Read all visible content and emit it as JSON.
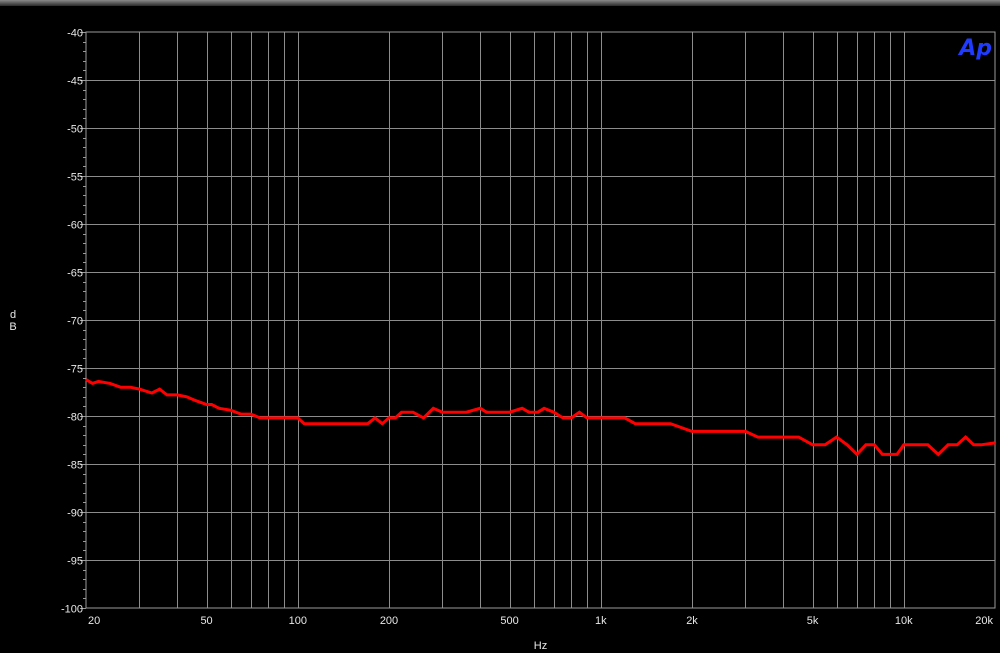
{
  "chart_data": {
    "type": "line",
    "title": "",
    "xlabel": "Hz",
    "ylabel": "dB",
    "x_scale": "log",
    "xlim": [
      20,
      20000
    ],
    "ylim": [
      -100,
      -40
    ],
    "grid": true,
    "y_ticks": [
      -40,
      -45,
      -50,
      -55,
      -60,
      -65,
      -70,
      -75,
      -80,
      -85,
      -90,
      -95,
      -100
    ],
    "y_tick_labels": [
      "-40",
      "-45",
      "-50",
      "-55",
      "-60",
      "-65",
      "-70",
      "-75",
      "-80",
      "-85",
      "-90",
      "-95",
      "-100"
    ],
    "x_ticks": [
      20,
      50,
      100,
      200,
      500,
      1000,
      2000,
      5000,
      10000,
      20000
    ],
    "x_tick_labels": [
      "20",
      "50",
      "100",
      "200",
      "500",
      "1k",
      "2k",
      "5k",
      "10k",
      "20k"
    ],
    "series": [
      {
        "color": "#ff0000",
        "x": [
          20,
          21,
          22,
          24,
          26,
          28,
          30,
          33,
          35,
          37,
          40,
          43,
          46,
          50,
          52,
          55,
          60,
          65,
          70,
          75,
          80,
          90,
          100,
          105,
          120,
          150,
          170,
          180,
          190,
          200,
          210,
          220,
          240,
          260,
          280,
          300,
          330,
          360,
          400,
          420,
          450,
          500,
          550,
          580,
          620,
          650,
          700,
          750,
          800,
          850,
          900,
          1000,
          1100,
          1200,
          1300,
          1500,
          1700,
          2000,
          2200,
          2500,
          3000,
          3300,
          4000,
          4500,
          5000,
          5500,
          6000,
          6500,
          7000,
          7500,
          8000,
          8500,
          9000,
          9500,
          10000,
          11000,
          12000,
          13000,
          14000,
          15000,
          16000,
          17000,
          18000,
          20000
        ],
        "y": [
          -76.2,
          -76.6,
          -76.4,
          -76.6,
          -77.0,
          -77.0,
          -77.2,
          -77.6,
          -77.2,
          -77.8,
          -77.8,
          -78.0,
          -78.4,
          -78.8,
          -78.8,
          -79.2,
          -79.4,
          -79.8,
          -79.8,
          -80.2,
          -80.2,
          -80.2,
          -80.2,
          -80.8,
          -80.8,
          -80.8,
          -80.8,
          -80.2,
          -80.8,
          -80.2,
          -80.2,
          -79.6,
          -79.6,
          -80.2,
          -79.2,
          -79.6,
          -79.6,
          -79.6,
          -79.2,
          -79.6,
          -79.6,
          -79.6,
          -79.2,
          -79.6,
          -79.6,
          -79.2,
          -79.6,
          -80.2,
          -80.2,
          -79.6,
          -80.2,
          -80.2,
          -80.2,
          -80.2,
          -80.8,
          -80.8,
          -80.8,
          -81.6,
          -81.6,
          -81.6,
          -81.6,
          -82.2,
          -82.2,
          -82.2,
          -83.0,
          -83.0,
          -82.2,
          -83.0,
          -84.0,
          -83.0,
          -83.0,
          -84.0,
          -84.0,
          -84.0,
          -83.0,
          -83.0,
          -83.0,
          -84.0,
          -83.0,
          -83.0,
          -82.2,
          -83.0,
          -83.0,
          -82.8
        ]
      }
    ]
  },
  "ui": {
    "logo_text": "Ap"
  }
}
